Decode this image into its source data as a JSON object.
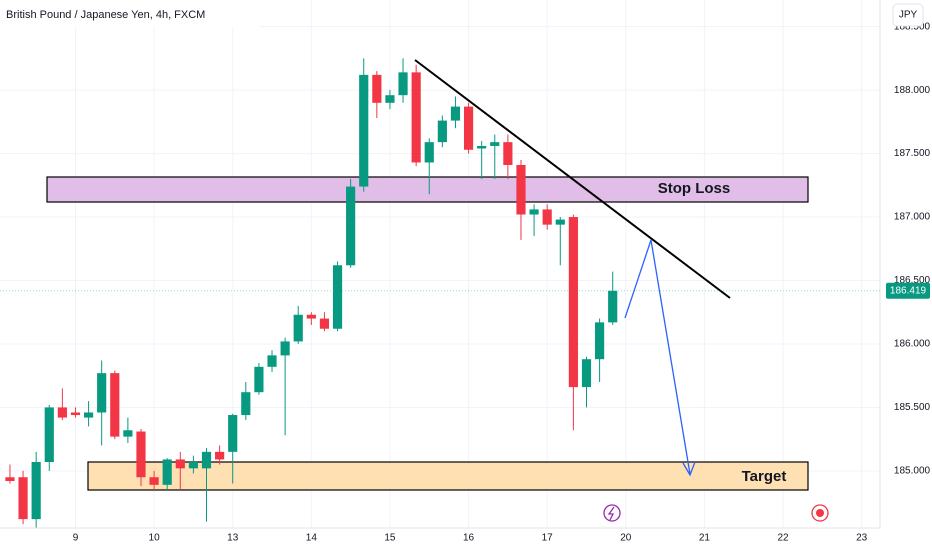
{
  "chart_data": {
    "type": "candlestick",
    "title": "British Pound / Japanese Yen, 4h, FXCM",
    "currency": "JPY",
    "up_color": "#089981",
    "down_color": "#f23645",
    "grid": true,
    "last_price": 186.419,
    "xlim": [
      -0.76,
      66.4
    ],
    "xticks": [
      {
        "value": 5,
        "label": "9"
      },
      {
        "value": 11,
        "label": "10"
      },
      {
        "value": 17,
        "label": "13"
      },
      {
        "value": 23,
        "label": "14"
      },
      {
        "value": 29,
        "label": "15"
      },
      {
        "value": 35,
        "label": "16"
      },
      {
        "value": 41,
        "label": "17"
      },
      {
        "value": 47,
        "label": "20"
      },
      {
        "value": 53,
        "label": "21"
      },
      {
        "value": 59,
        "label": "22"
      },
      {
        "value": 65,
        "label": "23"
      }
    ],
    "ylim": [
      184.55,
      188.71
    ],
    "yticks": [
      {
        "value": 185,
        "label": "185.000"
      },
      {
        "value": 185.5,
        "label": "185.500"
      },
      {
        "value": 186,
        "label": "186.000"
      },
      {
        "value": 186.5,
        "label": "186.500"
      },
      {
        "value": 187,
        "label": "187.000"
      },
      {
        "value": 187.5,
        "label": "187.500"
      },
      {
        "value": 188,
        "label": "188.000"
      },
      {
        "value": 188.5,
        "label": "188.500"
      }
    ],
    "open": [
      184.95,
      184.95,
      184.62,
      185.07,
      185.5,
      185.46,
      185.42,
      185.46,
      185.77,
      185.27,
      185.31,
      184.95,
      184.89,
      185.09,
      185.02,
      185.02,
      185.15,
      185.15,
      185.44,
      185.62,
      185.82,
      185.91,
      186.02,
      186.23,
      186.2,
      186.12,
      186.62,
      187.24,
      188.12,
      187.9,
      187.96,
      188.14,
      187.43,
      187.59,
      187.76,
      187.87,
      187.54,
      187.56,
      187.59,
      187.41,
      187.02,
      187.06,
      186.94,
      187.0,
      185.66,
      185.88,
      186.17
    ],
    "high": [
      185.05,
      185.0,
      185.15,
      185.52,
      185.65,
      185.5,
      185.55,
      185.87,
      185.79,
      185.42,
      185.33,
      185.0,
      185.1,
      185.15,
      185.12,
      185.18,
      185.2,
      185.45,
      185.7,
      185.85,
      185.95,
      186.05,
      186.3,
      186.25,
      186.25,
      186.65,
      187.3,
      188.25,
      188.15,
      188.0,
      188.25,
      188.2,
      187.62,
      187.8,
      187.95,
      187.9,
      187.6,
      187.65,
      187.65,
      187.45,
      187.1,
      187.1,
      187.0,
      187.02,
      185.9,
      186.2,
      186.57
    ],
    "low": [
      184.9,
      184.58,
      184.55,
      185.0,
      185.4,
      185.42,
      185.35,
      185.2,
      185.25,
      185.22,
      184.88,
      184.85,
      184.85,
      184.85,
      184.98,
      184.6,
      185.05,
      184.9,
      185.4,
      185.6,
      185.78,
      185.28,
      186.0,
      186.15,
      186.1,
      186.1,
      186.6,
      187.2,
      187.78,
      187.85,
      187.9,
      187.4,
      187.18,
      187.55,
      187.7,
      187.5,
      187.3,
      187.3,
      187.3,
      186.82,
      186.85,
      186.9,
      186.62,
      185.32,
      185.5,
      185.7,
      186.15
    ],
    "close": [
      184.92,
      184.62,
      185.07,
      185.5,
      185.42,
      185.44,
      185.46,
      185.77,
      185.27,
      185.32,
      184.95,
      184.89,
      185.09,
      185.02,
      185.07,
      185.15,
      185.09,
      185.44,
      185.62,
      185.82,
      185.91,
      186.02,
      186.23,
      186.2,
      186.12,
      186.62,
      187.24,
      188.12,
      187.9,
      187.96,
      188.14,
      187.43,
      187.59,
      187.76,
      187.87,
      187.53,
      187.56,
      187.59,
      187.41,
      187.02,
      187.06,
      186.94,
      186.98,
      185.66,
      185.88,
      186.17,
      186.419
    ],
    "annotations": {
      "stop_loss": "Stop Loss",
      "target": "Target"
    }
  }
}
